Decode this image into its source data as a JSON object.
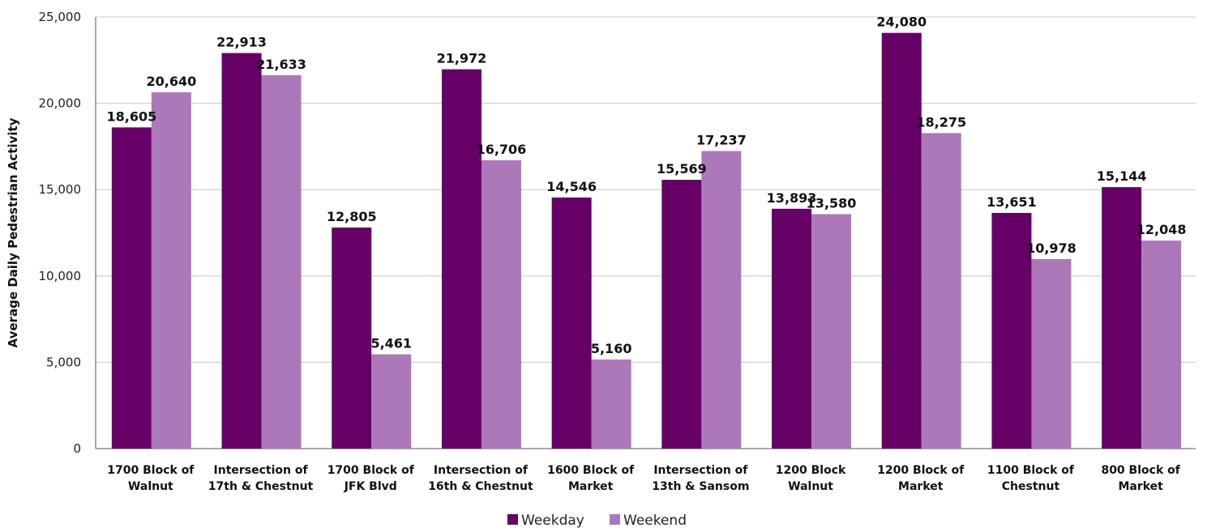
{
  "chart_data": {
    "type": "bar",
    "title": "",
    "xlabel": "",
    "ylabel": "Average Daily Pedestrian Activity",
    "ylim": [
      0,
      25000
    ],
    "yticks": [
      0,
      5000,
      10000,
      15000,
      20000,
      25000
    ],
    "ytick_labels": [
      "0",
      "5,000",
      "10,000",
      "15,000",
      "20,000",
      "25,000"
    ],
    "grid": true,
    "legend_position": "bottom-center",
    "categories": [
      [
        "1700 Block of",
        "Walnut"
      ],
      [
        "Intersection of",
        "17th & Chestnut"
      ],
      [
        "1700 Block of",
        "JFK Blvd"
      ],
      [
        "Intersection of",
        "16th & Chestnut"
      ],
      [
        "1600 Block of",
        "Market"
      ],
      [
        "Intersection of",
        "13th & Sansom"
      ],
      [
        "1200 Block",
        "Walnut"
      ],
      [
        "1200 Block of",
        "Market"
      ],
      [
        "1100 Block of",
        "Chestnut"
      ],
      [
        "800 Block of",
        "Market"
      ]
    ],
    "series": [
      {
        "name": "Weekday",
        "color": "#660066",
        "values": [
          18605,
          22913,
          12805,
          21972,
          14546,
          15569,
          13893,
          24080,
          13651,
          15144
        ],
        "labels": [
          "18,605",
          "22,913",
          "12,805",
          "21,972",
          "14,546",
          "15,569",
          "13,893",
          "24,080",
          "13,651",
          "15,144"
        ]
      },
      {
        "name": "Weekend",
        "color": "#ad78b9",
        "values": [
          20640,
          21633,
          5461,
          16706,
          5160,
          17237,
          13580,
          18275,
          10978,
          12048
        ],
        "labels": [
          "20,640",
          "21,633",
          "5,461",
          "16,706",
          "5,160",
          "17,237",
          "13,580",
          "18,275",
          "10,978",
          "12,048"
        ]
      }
    ]
  }
}
